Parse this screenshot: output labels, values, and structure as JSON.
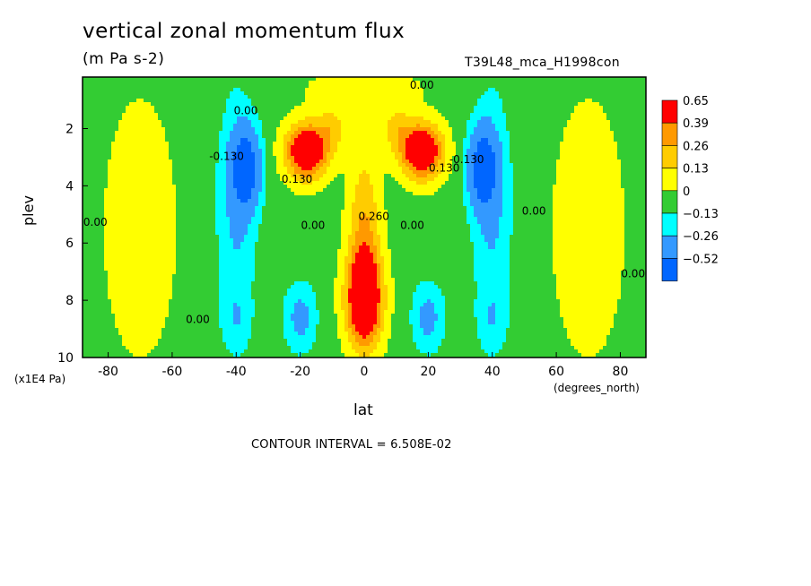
{
  "chart_data": {
    "type": "heatmap",
    "title": "vertical zonal momentum flux",
    "units_label": "(m Pa s-2)",
    "run_label": "T39L48_mca_H1998con",
    "xlabel": "lat",
    "xunit_label": "(degrees_north)",
    "ylabel": "plev",
    "yunit_label": "(x1E4 Pa)",
    "xlim": [
      -88,
      88
    ],
    "ylim": [
      10,
      0.2
    ],
    "x_ticks": [
      "-80",
      "-60",
      "-40",
      "-20",
      "0",
      "20",
      "40",
      "60",
      "80"
    ],
    "x_tick_values": [
      -80,
      -60,
      -40,
      -20,
      0,
      20,
      40,
      60,
      80
    ],
    "y_ticks": [
      "2",
      "4",
      "6",
      "8",
      "10"
    ],
    "y_tick_values": [
      2,
      4,
      6,
      8,
      10
    ],
    "contour_interval_text": "CONTOUR INTERVAL = 6.508E-02",
    "legend": {
      "labels": [
        "0.65",
        "0.39",
        "0.26",
        "0.13",
        "0",
        "−0.13",
        "−0.26",
        "−0.52"
      ],
      "colors": [
        "#ff0000",
        "#ff9900",
        "#ffcc00",
        "#ffff00",
        "#33cc33",
        "#00ffff",
        "#3399ff",
        "#0066ff"
      ]
    },
    "levels": [
      -0.52,
      -0.26,
      -0.13,
      0,
      0.13,
      0.26,
      0.39,
      0.65
    ],
    "colors": [
      "#0066ff",
      "#3399ff",
      "#00ffff",
      "#33cc33",
      "#ffff00",
      "#ffcc00",
      "#ff9900",
      "#ff0000"
    ],
    "contour_labels": [
      {
        "text": "0.00",
        "x": 18,
        "y": 0.6
      },
      {
        "text": "0.00",
        "x": -37,
        "y": 1.5
      },
      {
        "text": "-0.130",
        "x": -43,
        "y": 3.1
      },
      {
        "text": "0.130",
        "x": -21,
        "y": 3.9
      },
      {
        "text": "-0.130",
        "x": 32,
        "y": 3.2
      },
      {
        "text": "0.130",
        "x": 25,
        "y": 3.5
      },
      {
        "text": "0.260",
        "x": 3,
        "y": 5.2
      },
      {
        "text": "0.00",
        "x": -16,
        "y": 5.5
      },
      {
        "text": "0.00",
        "x": 15,
        "y": 5.5
      },
      {
        "text": "0.00",
        "x": -84,
        "y": 5.4
      },
      {
        "text": "0.00",
        "x": 53,
        "y": 5.0
      },
      {
        "text": "0.00",
        "x": 84,
        "y": 7.2
      },
      {
        "text": "0.00",
        "x": -52,
        "y": 8.8
      }
    ],
    "features": [
      {
        "x": 0,
        "y": 8.0,
        "sx": 5.5,
        "sy": 1.6,
        "amp": 0.75
      },
      {
        "x": 0,
        "y": 5.5,
        "sx": 5.0,
        "sy": 2.8,
        "amp": 0.3
      },
      {
        "x": -18,
        "y": 2.8,
        "sx": 6.5,
        "sy": 0.95,
        "amp": 0.72
      },
      {
        "x": 18,
        "y": 2.8,
        "sx": 6.5,
        "sy": 0.95,
        "amp": 0.72
      },
      {
        "x": -10,
        "y": 2.0,
        "sx": 5,
        "sy": 0.8,
        "amp": 0.2
      },
      {
        "x": 10,
        "y": 2.0,
        "sx": 5,
        "sy": 0.8,
        "amp": 0.2
      },
      {
        "x": -37,
        "y": 3.4,
        "sx": 4.5,
        "sy": 1.4,
        "amp": -0.6
      },
      {
        "x": 37,
        "y": 3.4,
        "sx": 4.5,
        "sy": 1.4,
        "amp": -0.6
      },
      {
        "x": -40,
        "y": 5.0,
        "sx": 6,
        "sy": 4.2,
        "amp": -0.22
      },
      {
        "x": 40,
        "y": 5.0,
        "sx": 6,
        "sy": 4.2,
        "amp": -0.22
      },
      {
        "x": -20,
        "y": 8.6,
        "sx": 5,
        "sy": 1.2,
        "amp": -0.27
      },
      {
        "x": 20,
        "y": 8.6,
        "sx": 5,
        "sy": 1.2,
        "amp": -0.27
      },
      {
        "x": -40,
        "y": 8.7,
        "sx": 4.5,
        "sy": 1.0,
        "amp": -0.12
      },
      {
        "x": 40,
        "y": 8.7,
        "sx": 4.5,
        "sy": 1.0,
        "amp": -0.12
      },
      {
        "x": -70,
        "y": 5.5,
        "sx": 10,
        "sy": 4.0,
        "amp": 0.18
      },
      {
        "x": 70,
        "y": 5.5,
        "sx": 10,
        "sy": 4.0,
        "amp": 0.18
      },
      {
        "x": 0,
        "y": 0.6,
        "sx": 16,
        "sy": 0.7,
        "amp": 0.16
      }
    ],
    "background_value": -0.05
  }
}
